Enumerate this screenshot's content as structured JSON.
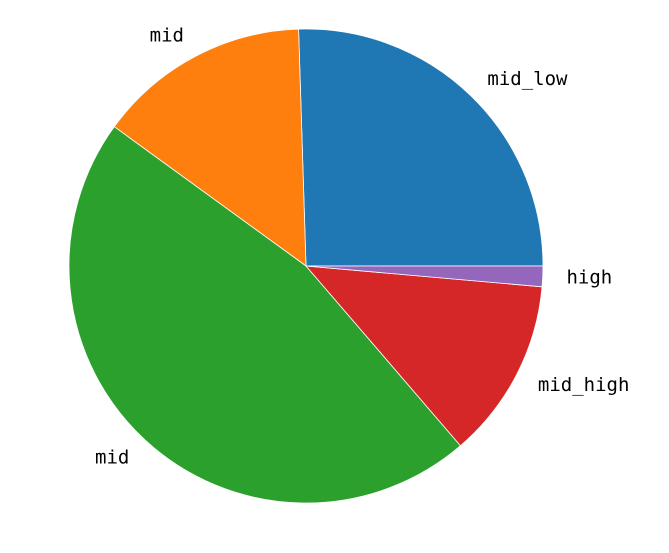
{
  "chart_data": {
    "type": "pie",
    "title": "",
    "start_angle_deg": 0,
    "direction": "counterclockwise",
    "legend": "none",
    "slices": [
      {
        "label": "mid_low",
        "value": 25.5,
        "color": "#1f77b4"
      },
      {
        "label": "mid",
        "value": 14.5,
        "color": "#ff7f0e"
      },
      {
        "label": "mid",
        "value": 46.3,
        "color": "#2ca02c"
      },
      {
        "label": "mid_high",
        "value": 12.3,
        "color": "#d62728"
      },
      {
        "label": "high",
        "value": 1.4,
        "color": "#9467bd"
      }
    ]
  }
}
